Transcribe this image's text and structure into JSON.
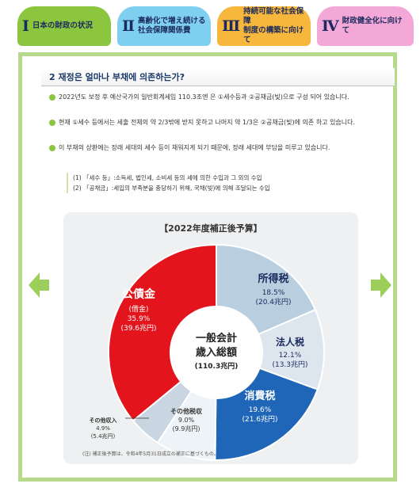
{
  "tabs": [
    {
      "num": "Ⅰ",
      "label": "日本の財政の状況",
      "color": "#8cc63f"
    },
    {
      "num": "Ⅱ",
      "label": "高齢化で増え続ける\n社会保障関係費",
      "color": "#7fd0f0"
    },
    {
      "num": "Ⅲ",
      "label": "持続可能な社会保障\n制度の構築に向けて",
      "color": "#f6b73c"
    },
    {
      "num": "Ⅳ",
      "label": "財政健全化に向けて",
      "color": "#f3a8d8"
    }
  ],
  "section": {
    "title": "2 재정은 얼마나 부채에 의존하는가?",
    "bullets": [
      "2022년도 보정 후 예산국가의 일반회계세입 110.3조엔 은 ①세수등과 ②공채금(빚)으로 구성 되어 있습니다.",
      "현재 ①세수 등에서는 세출 전체의 약 2/3밖에 받지 못하고 나머지 약 1/3은 ②공채금(빚)에 의존 하고 있습니다.",
      "이 부채의 상환에는 장래 세대의 세수 등이 채워지게 되기 때문에, 장래 세대에 부담을 미루고 있습니다."
    ],
    "notes": [
      "(1) 「세수 등」:소득세, 법인세, 소비세 등의 세에 의한 수입과 그 외의 수입",
      "(2) 「공채금」:세입의 부족분을 충당하기 위해, 국채(빚)에 의해 조달되는 수입"
    ]
  },
  "chart_data": {
    "type": "pie",
    "title": "【2022年度補正後予算】",
    "center_label": [
      "一般会計",
      "歳入総額",
      "(110.3兆円)"
    ],
    "slices": [
      {
        "name": "所得税",
        "pct": "18.5%",
        "amount": "(20.4兆円)",
        "value": 20.4,
        "color": "#b9cfe0"
      },
      {
        "name": "法人税",
        "pct": "12.1%",
        "amount": "(13.3兆円)",
        "value": 13.3,
        "color": "#dde6ee"
      },
      {
        "name": "消費税",
        "pct": "19.6%",
        "amount": "(21.6兆円)",
        "value": 21.6,
        "color": "#1f66b8"
      },
      {
        "name": "その他税収",
        "pct": "9.0%",
        "amount": "(9.9兆円)",
        "value": 9.9,
        "color": "#eef3f7"
      },
      {
        "name": "その他収入",
        "pct": "4.9%",
        "amount": "(5.4兆円)",
        "value": 5.4,
        "color": "#c9d6e2"
      },
      {
        "name": "公債金",
        "sub": "(借金)",
        "pct": "35.9%",
        "amount": "(39.6兆円)",
        "value": 39.6,
        "color": "#e3141b"
      }
    ],
    "footnote": "(注) 補正後予算は、令和4年5月31日成立の補正に基づくもの。"
  }
}
